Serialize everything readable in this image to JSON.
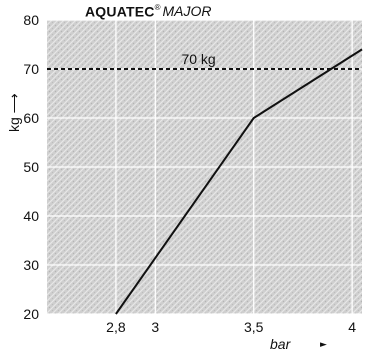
{
  "title": {
    "brand": "AQUATEC",
    "reg_mark": "®",
    "model": "MAJOR"
  },
  "chart_data": {
    "type": "line",
    "title": "AQUATEC® MAJOR",
    "xlabel": "bar",
    "ylabel": "kg",
    "x_ticks": [
      2.8,
      3,
      3.5,
      4
    ],
    "x_tick_labels": [
      "2,8",
      "3",
      "3,5",
      "4"
    ],
    "y_ticks": [
      20,
      30,
      40,
      50,
      60,
      70,
      80
    ],
    "y_tick_labels": [
      "20",
      "30",
      "40",
      "50",
      "60",
      "70",
      "80"
    ],
    "xlim": [
      2.45,
      4.05
    ],
    "ylim": [
      20,
      80
    ],
    "grid": true,
    "series": [
      {
        "x": [
          2.8,
          3.5,
          4.05
        ],
        "y": [
          20,
          60,
          74
        ],
        "color": "#111111"
      }
    ],
    "reference_line": {
      "y": 70,
      "label": "70 kg",
      "style": "dashed",
      "color": "#111111"
    },
    "background_texture": "#d8d8d8"
  }
}
